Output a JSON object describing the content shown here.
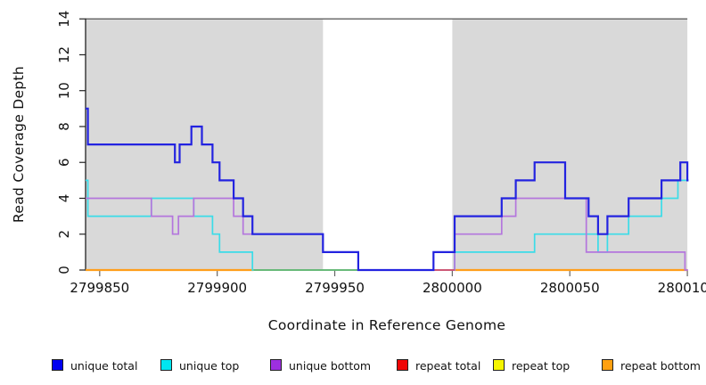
{
  "chart_data": {
    "type": "line",
    "subtype": "step",
    "title": "",
    "xlabel": "Coordinate in Reference Genome",
    "ylabel": "Read Coverage Depth",
    "xlim": [
      2799844,
      2800100.5
    ],
    "ylim": [
      0,
      14
    ],
    "grid": false,
    "xticks": [
      "2799850",
      "2799900",
      "2799950",
      "2800000",
      "2800050",
      "2800100"
    ],
    "xtick_values": [
      2799850,
      2799900,
      2799950,
      2800000,
      2800050,
      2800100
    ],
    "yticks": [
      "0",
      "2",
      "4",
      "6",
      "8",
      "10",
      "12",
      "14"
    ],
    "ytick_values": [
      0,
      2,
      4,
      6,
      8,
      10,
      12,
      14
    ],
    "shade_color": "#d9d9d9",
    "shaded_regions": [
      {
        "from": 2799844,
        "to": 2799945
      },
      {
        "from": 2800000,
        "to": 2800100
      }
    ],
    "series": [
      {
        "name": "unique total",
        "color": "#2323e0",
        "width": 2.2,
        "end": 2800100.5,
        "steps": [
          [
            2799844,
            9
          ],
          [
            2799845,
            7
          ],
          [
            2799882,
            6
          ],
          [
            2799884,
            7
          ],
          [
            2799889,
            8
          ],
          [
            2799893.5,
            7
          ],
          [
            2799898,
            6
          ],
          [
            2799901,
            5
          ],
          [
            2799907,
            4
          ],
          [
            2799911,
            3
          ],
          [
            2799915,
            2
          ],
          [
            2799945,
            1
          ],
          [
            2799960,
            0
          ],
          [
            2799992,
            1
          ],
          [
            2800001,
            3
          ],
          [
            2800021,
            4
          ],
          [
            2800027,
            5
          ],
          [
            2800035,
            6
          ],
          [
            2800048,
            4
          ],
          [
            2800058,
            3
          ],
          [
            2800062,
            2
          ],
          [
            2800066,
            3
          ],
          [
            2800075,
            4
          ],
          [
            2800089,
            5
          ],
          [
            2800097,
            6
          ],
          [
            2800100,
            5
          ]
        ]
      },
      {
        "name": "unique top",
        "color": "#3bdce8",
        "width": 1.7,
        "end": 2800100.3,
        "steps": [
          [
            2799844,
            5
          ],
          [
            2799845,
            3
          ],
          [
            2799872,
            4
          ],
          [
            2799890,
            3
          ],
          [
            2799898,
            2
          ],
          [
            2799901,
            1
          ],
          [
            2799915,
            0
          ],
          [
            2800001,
            1
          ],
          [
            2800035,
            2
          ],
          [
            2800062,
            1
          ],
          [
            2800066,
            2
          ],
          [
            2800075,
            3
          ],
          [
            2800089,
            4
          ],
          [
            2800096,
            5
          ]
        ]
      },
      {
        "name": "unique bottom",
        "color": "#b476dd",
        "width": 1.7,
        "end": 2800100.3,
        "steps": [
          [
            2799844,
            4
          ],
          [
            2799872,
            3
          ],
          [
            2799881,
            2
          ],
          [
            2799883.5,
            3
          ],
          [
            2799890,
            4
          ],
          [
            2799907,
            3
          ],
          [
            2799911,
            2
          ],
          [
            2799945,
            1
          ],
          [
            2799960,
            0
          ],
          [
            2800001,
            2
          ],
          [
            2800021,
            3
          ],
          [
            2800027,
            4
          ],
          [
            2800057,
            1
          ],
          [
            2800099,
            0
          ]
        ]
      },
      {
        "name": "repeat total",
        "color": "#d25067",
        "width": 1.7,
        "end": 2800001,
        "steps": [
          [
            2799992,
            0
          ]
        ],
        "drawn_via_baseline": true
      },
      {
        "name": "repeat top",
        "color": "#f0f000",
        "width": 1.7,
        "end": null,
        "steps": [],
        "drawn_via_baseline": true
      },
      {
        "name": "repeat bottom",
        "color": "#ff9e1b",
        "width": 2.2,
        "end": 2800100,
        "steps": [
          [
            2799844,
            0
          ]
        ],
        "drawn_via_baseline": true
      }
    ],
    "baseline_segments": [
      {
        "name": "orange-left",
        "color": "#ff9e1b",
        "width": 2.2,
        "from": 2799844,
        "to": 2799915.5,
        "y": 0
      },
      {
        "name": "orange-right",
        "color": "#ff9e1b",
        "width": 2.2,
        "from": 2800001,
        "to": 2800100,
        "y": 0
      },
      {
        "name": "green-blend",
        "color": "#69b469",
        "width": 1.7,
        "from": 2799915.5,
        "to": 2799960,
        "y": 0
      },
      {
        "name": "red-repeat",
        "color": "#d25067",
        "width": 1.7,
        "from": 2799992,
        "to": 2800001,
        "y": 0
      }
    ],
    "legend": [
      {
        "label": "unique total",
        "color": "#0000f0"
      },
      {
        "label": "unique top",
        "color": "#00e6f0"
      },
      {
        "label": "unique bottom",
        "color": "#9d2fe0"
      },
      {
        "label": "repeat total",
        "color": "#f00505"
      },
      {
        "label": "repeat top",
        "color": "#f5f500"
      },
      {
        "label": "repeat bottom",
        "color": "#ffa010"
      }
    ],
    "legend_position": "bottom"
  }
}
